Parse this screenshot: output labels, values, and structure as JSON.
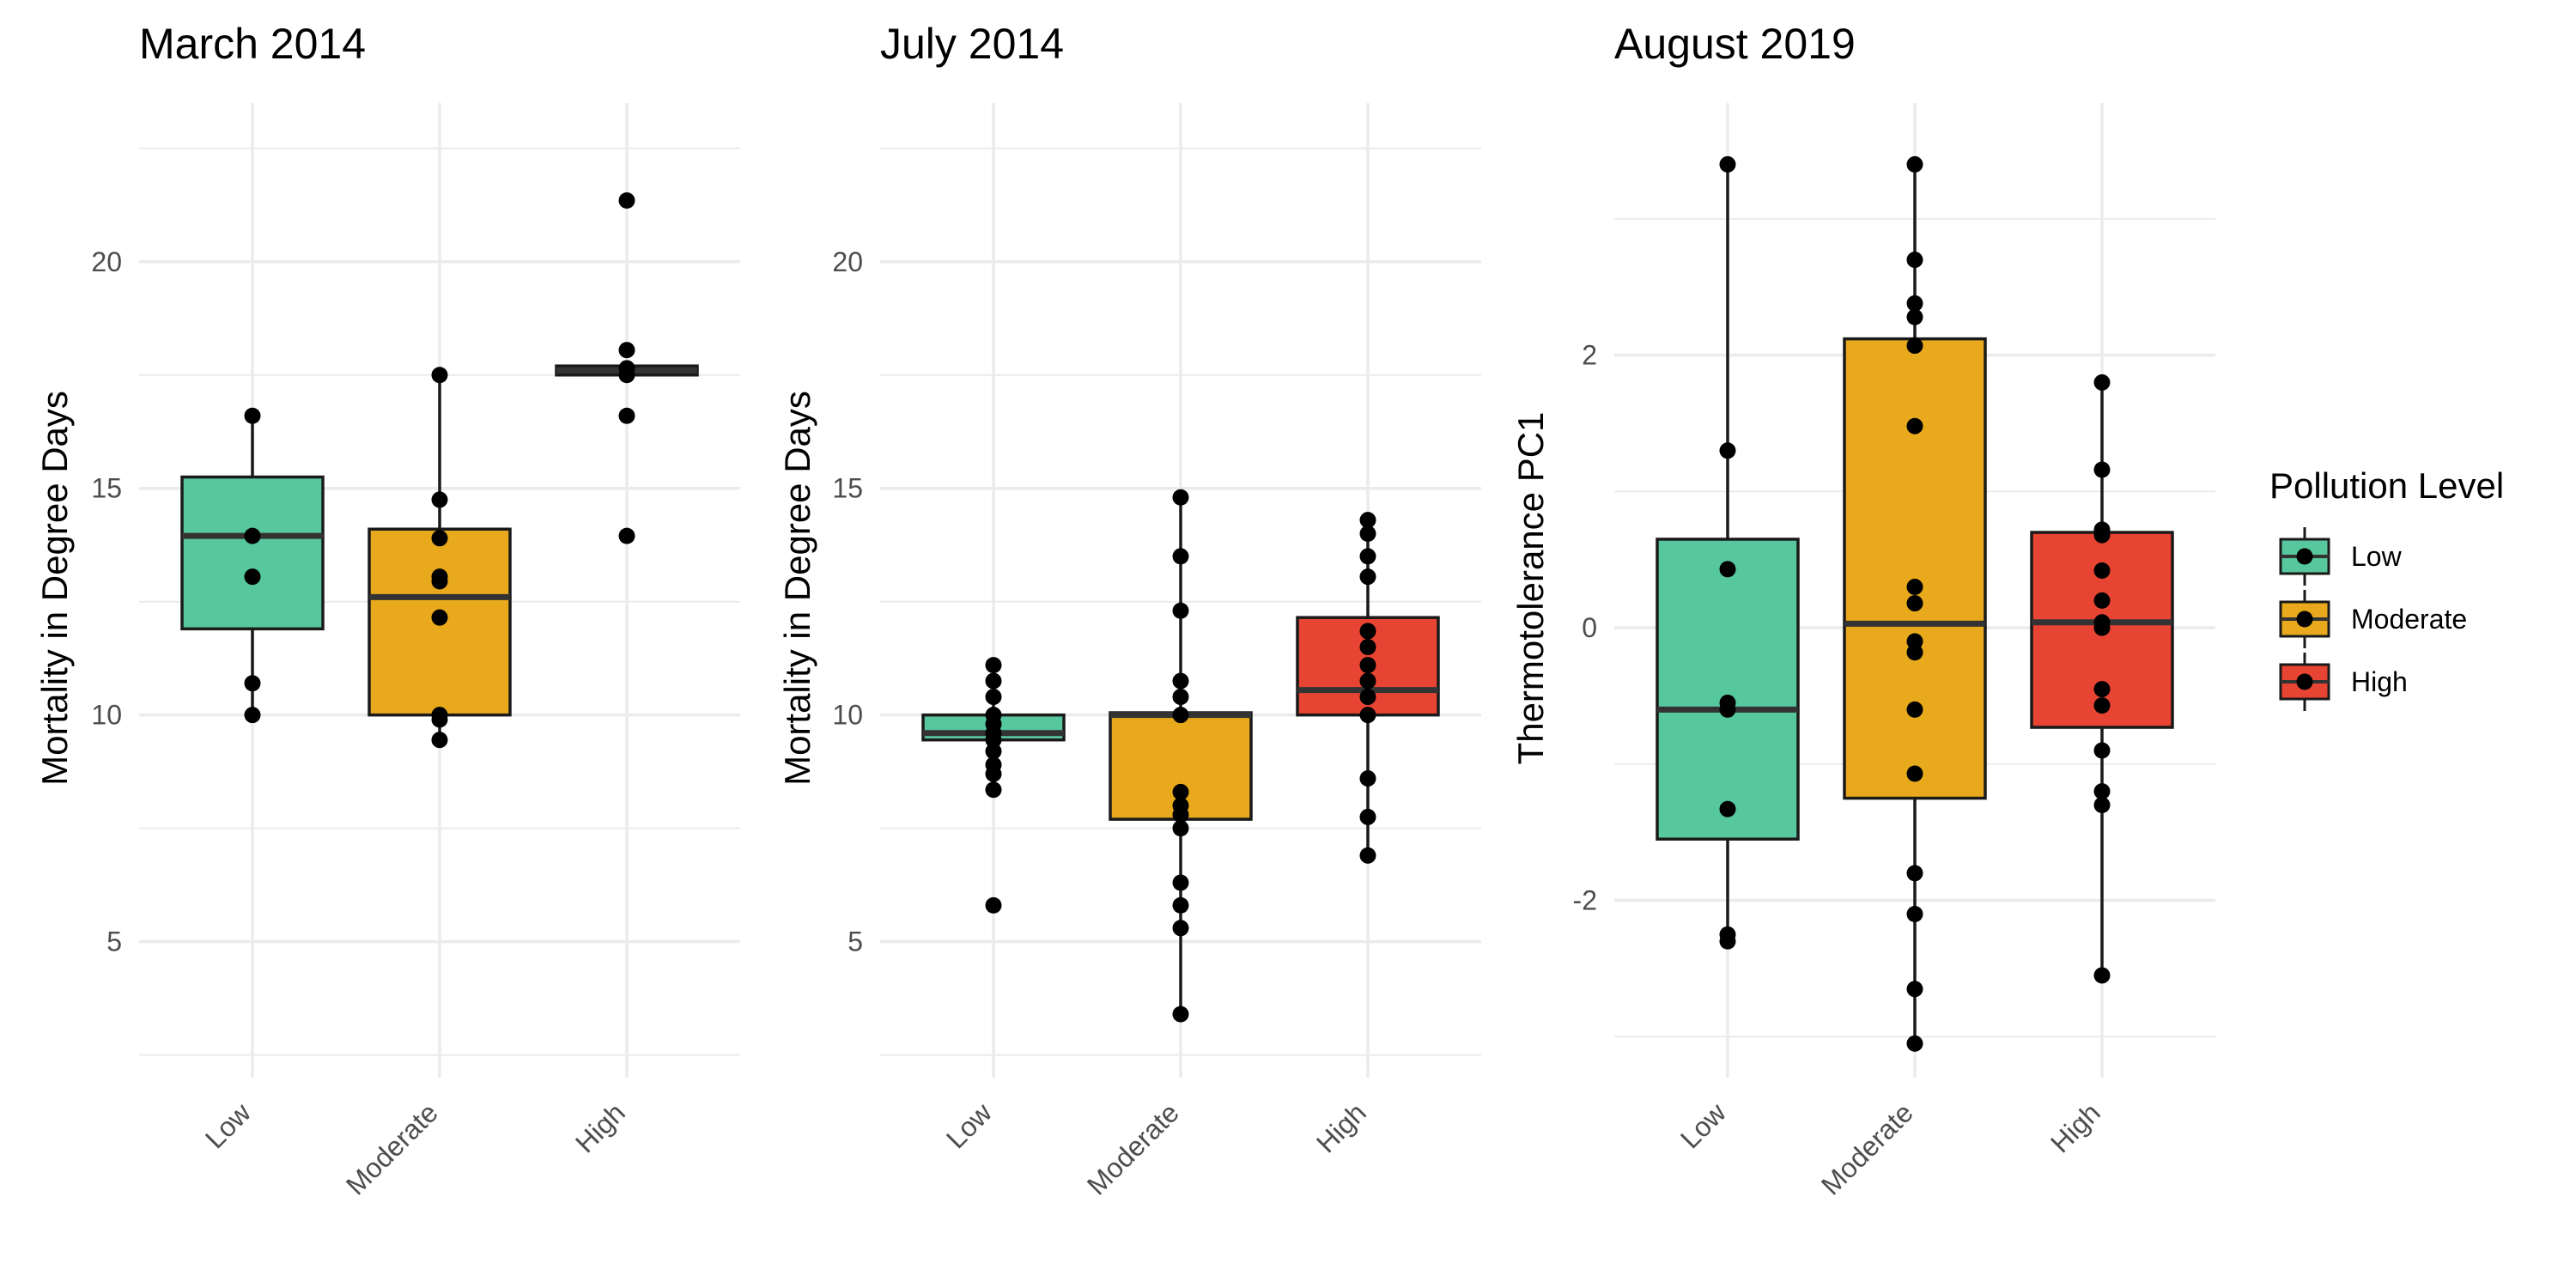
{
  "chart_data": [
    {
      "type": "box",
      "title": "March 2014",
      "ylabel": "Mortality in Degree Days",
      "ylim": [
        2.0,
        23.5
      ],
      "yticks": [
        "5",
        "10",
        "15",
        "20"
      ],
      "categories": [
        "Low",
        "Moderate",
        "High"
      ],
      "boxes": [
        {
          "q1": 11.9,
          "median": 13.95,
          "q3": 15.25,
          "whisker_low": 10.0,
          "whisker_high": 16.6
        },
        {
          "q1": 10.0,
          "median": 12.6,
          "q3": 14.1,
          "whisker_low": 9.45,
          "whisker_high": 17.5
        },
        {
          "q1": 17.5,
          "median": 17.6,
          "q3": 17.7,
          "whisker_low": 17.5,
          "whisker_high": 17.7
        }
      ],
      "points": [
        [
          16.6,
          13.95,
          13.05,
          10.7,
          10.0
        ],
        [
          17.5,
          14.75,
          13.9,
          13.05,
          12.95,
          12.15,
          10.0,
          9.9,
          9.45
        ],
        [
          21.35,
          18.05,
          17.65,
          17.5,
          16.6,
          13.95
        ]
      ]
    },
    {
      "type": "box",
      "title": "July 2014",
      "ylabel": "Mortality in Degree Days",
      "ylim": [
        2.0,
        23.5
      ],
      "yticks": [
        "5",
        "10",
        "15",
        "20"
      ],
      "categories": [
        "Low",
        "Moderate",
        "High"
      ],
      "boxes": [
        {
          "q1": 9.45,
          "median": 9.6,
          "q3": 10.0,
          "whisker_low": 8.3,
          "whisker_high": 11.1
        },
        {
          "q1": 7.7,
          "median": 10.0,
          "q3": 10.05,
          "whisker_low": 3.4,
          "whisker_high": 14.8
        },
        {
          "q1": 10.0,
          "median": 10.55,
          "q3": 12.15,
          "whisker_low": 6.9,
          "whisker_high": 14.3
        }
      ],
      "points": [
        [
          11.1,
          10.75,
          10.4,
          10.0,
          9.8,
          9.6,
          9.45,
          9.2,
          8.9,
          8.7,
          8.35,
          5.8
        ],
        [
          14.8,
          13.5,
          12.3,
          10.75,
          10.4,
          10.0,
          8.3,
          8.0,
          7.8,
          7.5,
          6.3,
          5.8,
          5.3,
          3.4
        ],
        [
          14.3,
          14.0,
          13.5,
          13.05,
          11.85,
          11.5,
          11.1,
          10.75,
          10.4,
          10.0,
          8.6,
          7.75,
          6.9
        ]
      ]
    },
    {
      "type": "box",
      "title": "August 2019",
      "ylabel": "Thermotolerance PC1",
      "ylim": [
        -3.3,
        3.85
      ],
      "yticks": [
        "-2",
        "0",
        "2"
      ],
      "categories": [
        "Low",
        "Moderate",
        "High"
      ],
      "boxes": [
        {
          "q1": -1.55,
          "median": -0.6,
          "q3": 0.65,
          "whisker_low": -2.3,
          "whisker_high": 3.4
        },
        {
          "q1": -1.25,
          "median": 0.03,
          "q3": 2.12,
          "whisker_low": -3.05,
          "whisker_high": 3.4
        },
        {
          "q1": -0.73,
          "median": 0.04,
          "q3": 0.7,
          "whisker_low": -2.55,
          "whisker_high": 1.8
        }
      ],
      "points": [
        [
          3.4,
          1.3,
          0.43,
          -0.55,
          -0.6,
          -1.33,
          -2.25,
          -2.3
        ],
        [
          3.4,
          2.7,
          2.38,
          2.28,
          2.07,
          1.48,
          0.3,
          0.18,
          -0.1,
          -0.18,
          -0.6,
          -1.07,
          -1.8,
          -2.1,
          -2.65,
          -3.05
        ],
        [
          1.8,
          1.16,
          0.72,
          0.68,
          0.42,
          0.2,
          0.04,
          0.0,
          -0.45,
          -0.57,
          -0.9,
          -1.2,
          -1.3,
          -2.55
        ]
      ]
    }
  ],
  "legend": {
    "title": "Pollution Level",
    "items": [
      {
        "label": "Low",
        "color": "#57c79d"
      },
      {
        "label": "Moderate",
        "color": "#e8a91c"
      },
      {
        "label": "High",
        "color": "#e84433"
      }
    ]
  },
  "colors": {
    "grid": "#ebebeb",
    "box_stroke": "#1a1a1a",
    "point": "#000000"
  }
}
